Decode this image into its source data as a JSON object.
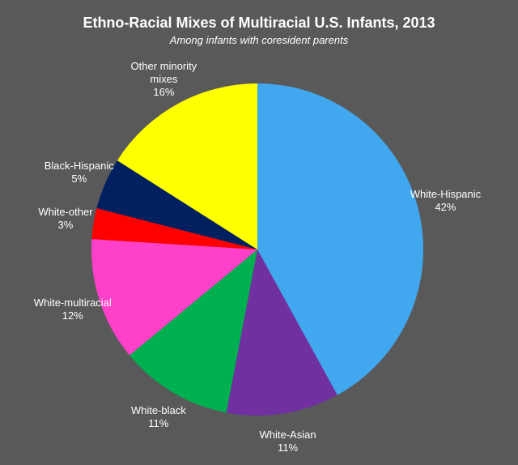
{
  "chart_data": {
    "type": "pie",
    "title": "Ethno-Racial Mixes of Multiracial U.S. Infants, 2013",
    "subtitle": "Among infants with coresident parents",
    "categories": [
      "White-Hispanic",
      "White-Asian",
      "White-black",
      "White-multiracial",
      "White-other",
      "Black-Hispanic",
      "Other minority mixes"
    ],
    "values": [
      42,
      11,
      11,
      12,
      3,
      5,
      16
    ],
    "value_labels": [
      "42%",
      "11%",
      "11%",
      "12%",
      "3%",
      "5%",
      "16%"
    ],
    "colors": [
      "#41a8f0",
      "#7030a0",
      "#00b050",
      "#ff40c8",
      "#ff0000",
      "#002060",
      "#ffff00"
    ]
  }
}
